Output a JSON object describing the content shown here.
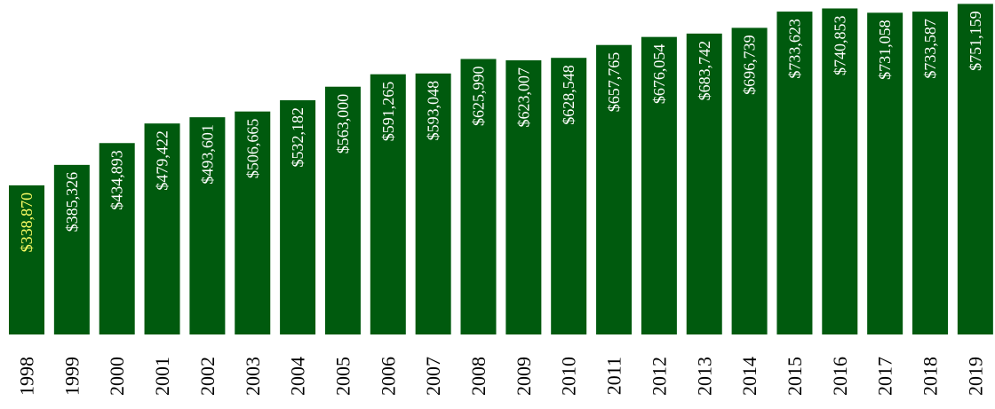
{
  "colors": {
    "bar": "#005a0e",
    "value_label": "#ffffff",
    "first_value_label": "#ffff66",
    "year_label": "#000000",
    "background": "#ffffff"
  },
  "chart_data": {
    "type": "bar",
    "title": "",
    "xlabel": "",
    "ylabel": "",
    "grid": false,
    "legend": "none",
    "orientation": "vertical",
    "ylim": [
      0,
      760000
    ],
    "categories": [
      "1998",
      "1999",
      "2000",
      "2001",
      "2002",
      "2003",
      "2004",
      "2005",
      "2006",
      "2007",
      "2008",
      "2009",
      "2010",
      "2011",
      "2012",
      "2013",
      "2014",
      "2015",
      "2016",
      "2017",
      "2018",
      "2019"
    ],
    "values": [
      338870,
      385326,
      434893,
      479422,
      493601,
      506665,
      532182,
      563000,
      591265,
      593048,
      625990,
      623007,
      628548,
      657765,
      676054,
      683742,
      696739,
      733623,
      740853,
      731058,
      733587,
      751159
    ],
    "data_labels": [
      "$338,870",
      "$385,326",
      "$434,893",
      "$479,422",
      "$493,601",
      "$506,665",
      "$532,182",
      "$563,000",
      "$591,265",
      "$593,048",
      "$625,990",
      "$623,007",
      "$628,548",
      "$657,765",
      "$676,054",
      "$683,742",
      "$696,739",
      "$733,623",
      "$740,853",
      "$731,058",
      "$733,587",
      "$751,159"
    ]
  }
}
